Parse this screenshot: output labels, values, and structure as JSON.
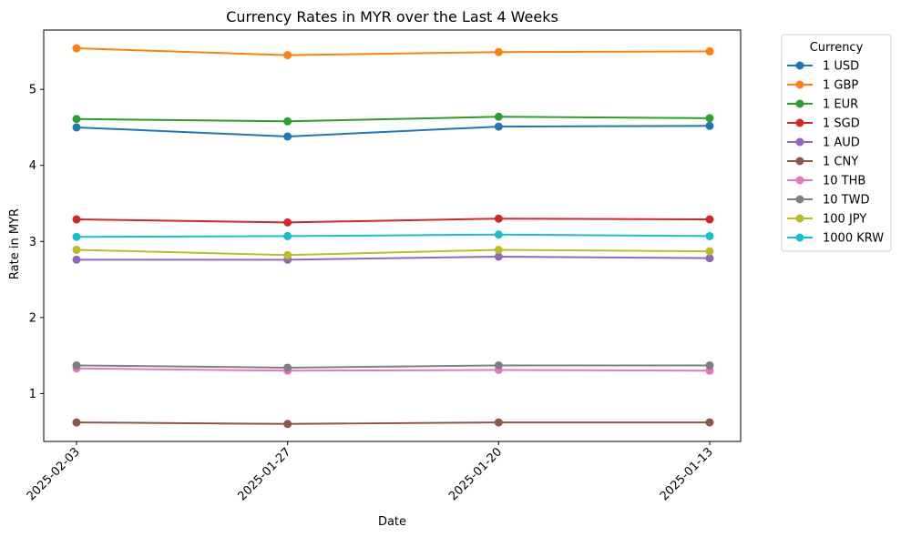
{
  "chart_data": {
    "type": "line",
    "title": "Currency Rates in MYR over the Last 4 Weeks",
    "xlabel": "Date",
    "ylabel": "Rate in MYR",
    "categories": [
      "2025-02-03",
      "2025-01-27",
      "2025-01-20",
      "2025-01-13"
    ],
    "ylim": [
      0.37,
      5.78
    ],
    "yticks": [
      1,
      2,
      3,
      4,
      5
    ],
    "grid": false,
    "legend": {
      "title": "Currency",
      "placement": "outside-right"
    },
    "series": [
      {
        "name": "1 USD",
        "color": "#1f77b4",
        "values": [
          4.5,
          4.38,
          4.51,
          4.52
        ]
      },
      {
        "name": "1 GBP",
        "color": "#ff7f0e",
        "values": [
          5.54,
          5.45,
          5.49,
          5.5
        ]
      },
      {
        "name": "1 EUR",
        "color": "#2ca02c",
        "values": [
          4.61,
          4.58,
          4.64,
          4.62
        ]
      },
      {
        "name": "1 SGD",
        "color": "#d62728",
        "values": [
          3.29,
          3.25,
          3.3,
          3.29
        ]
      },
      {
        "name": "1 AUD",
        "color": "#9467bd",
        "values": [
          2.76,
          2.76,
          2.8,
          2.78
        ]
      },
      {
        "name": "1 CNY",
        "color": "#8c564b",
        "values": [
          0.62,
          0.6,
          0.62,
          0.62
        ]
      },
      {
        "name": "10 THB",
        "color": "#e377c2",
        "values": [
          1.33,
          1.3,
          1.31,
          1.3
        ]
      },
      {
        "name": "10 TWD",
        "color": "#7f7f7f",
        "values": [
          1.37,
          1.34,
          1.37,
          1.37
        ]
      },
      {
        "name": "100 JPY",
        "color": "#bcbd22",
        "values": [
          2.89,
          2.82,
          2.89,
          2.87
        ]
      },
      {
        "name": "1000 KRW",
        "color": "#17becf",
        "values": [
          3.06,
          3.07,
          3.09,
          3.07
        ]
      }
    ]
  }
}
